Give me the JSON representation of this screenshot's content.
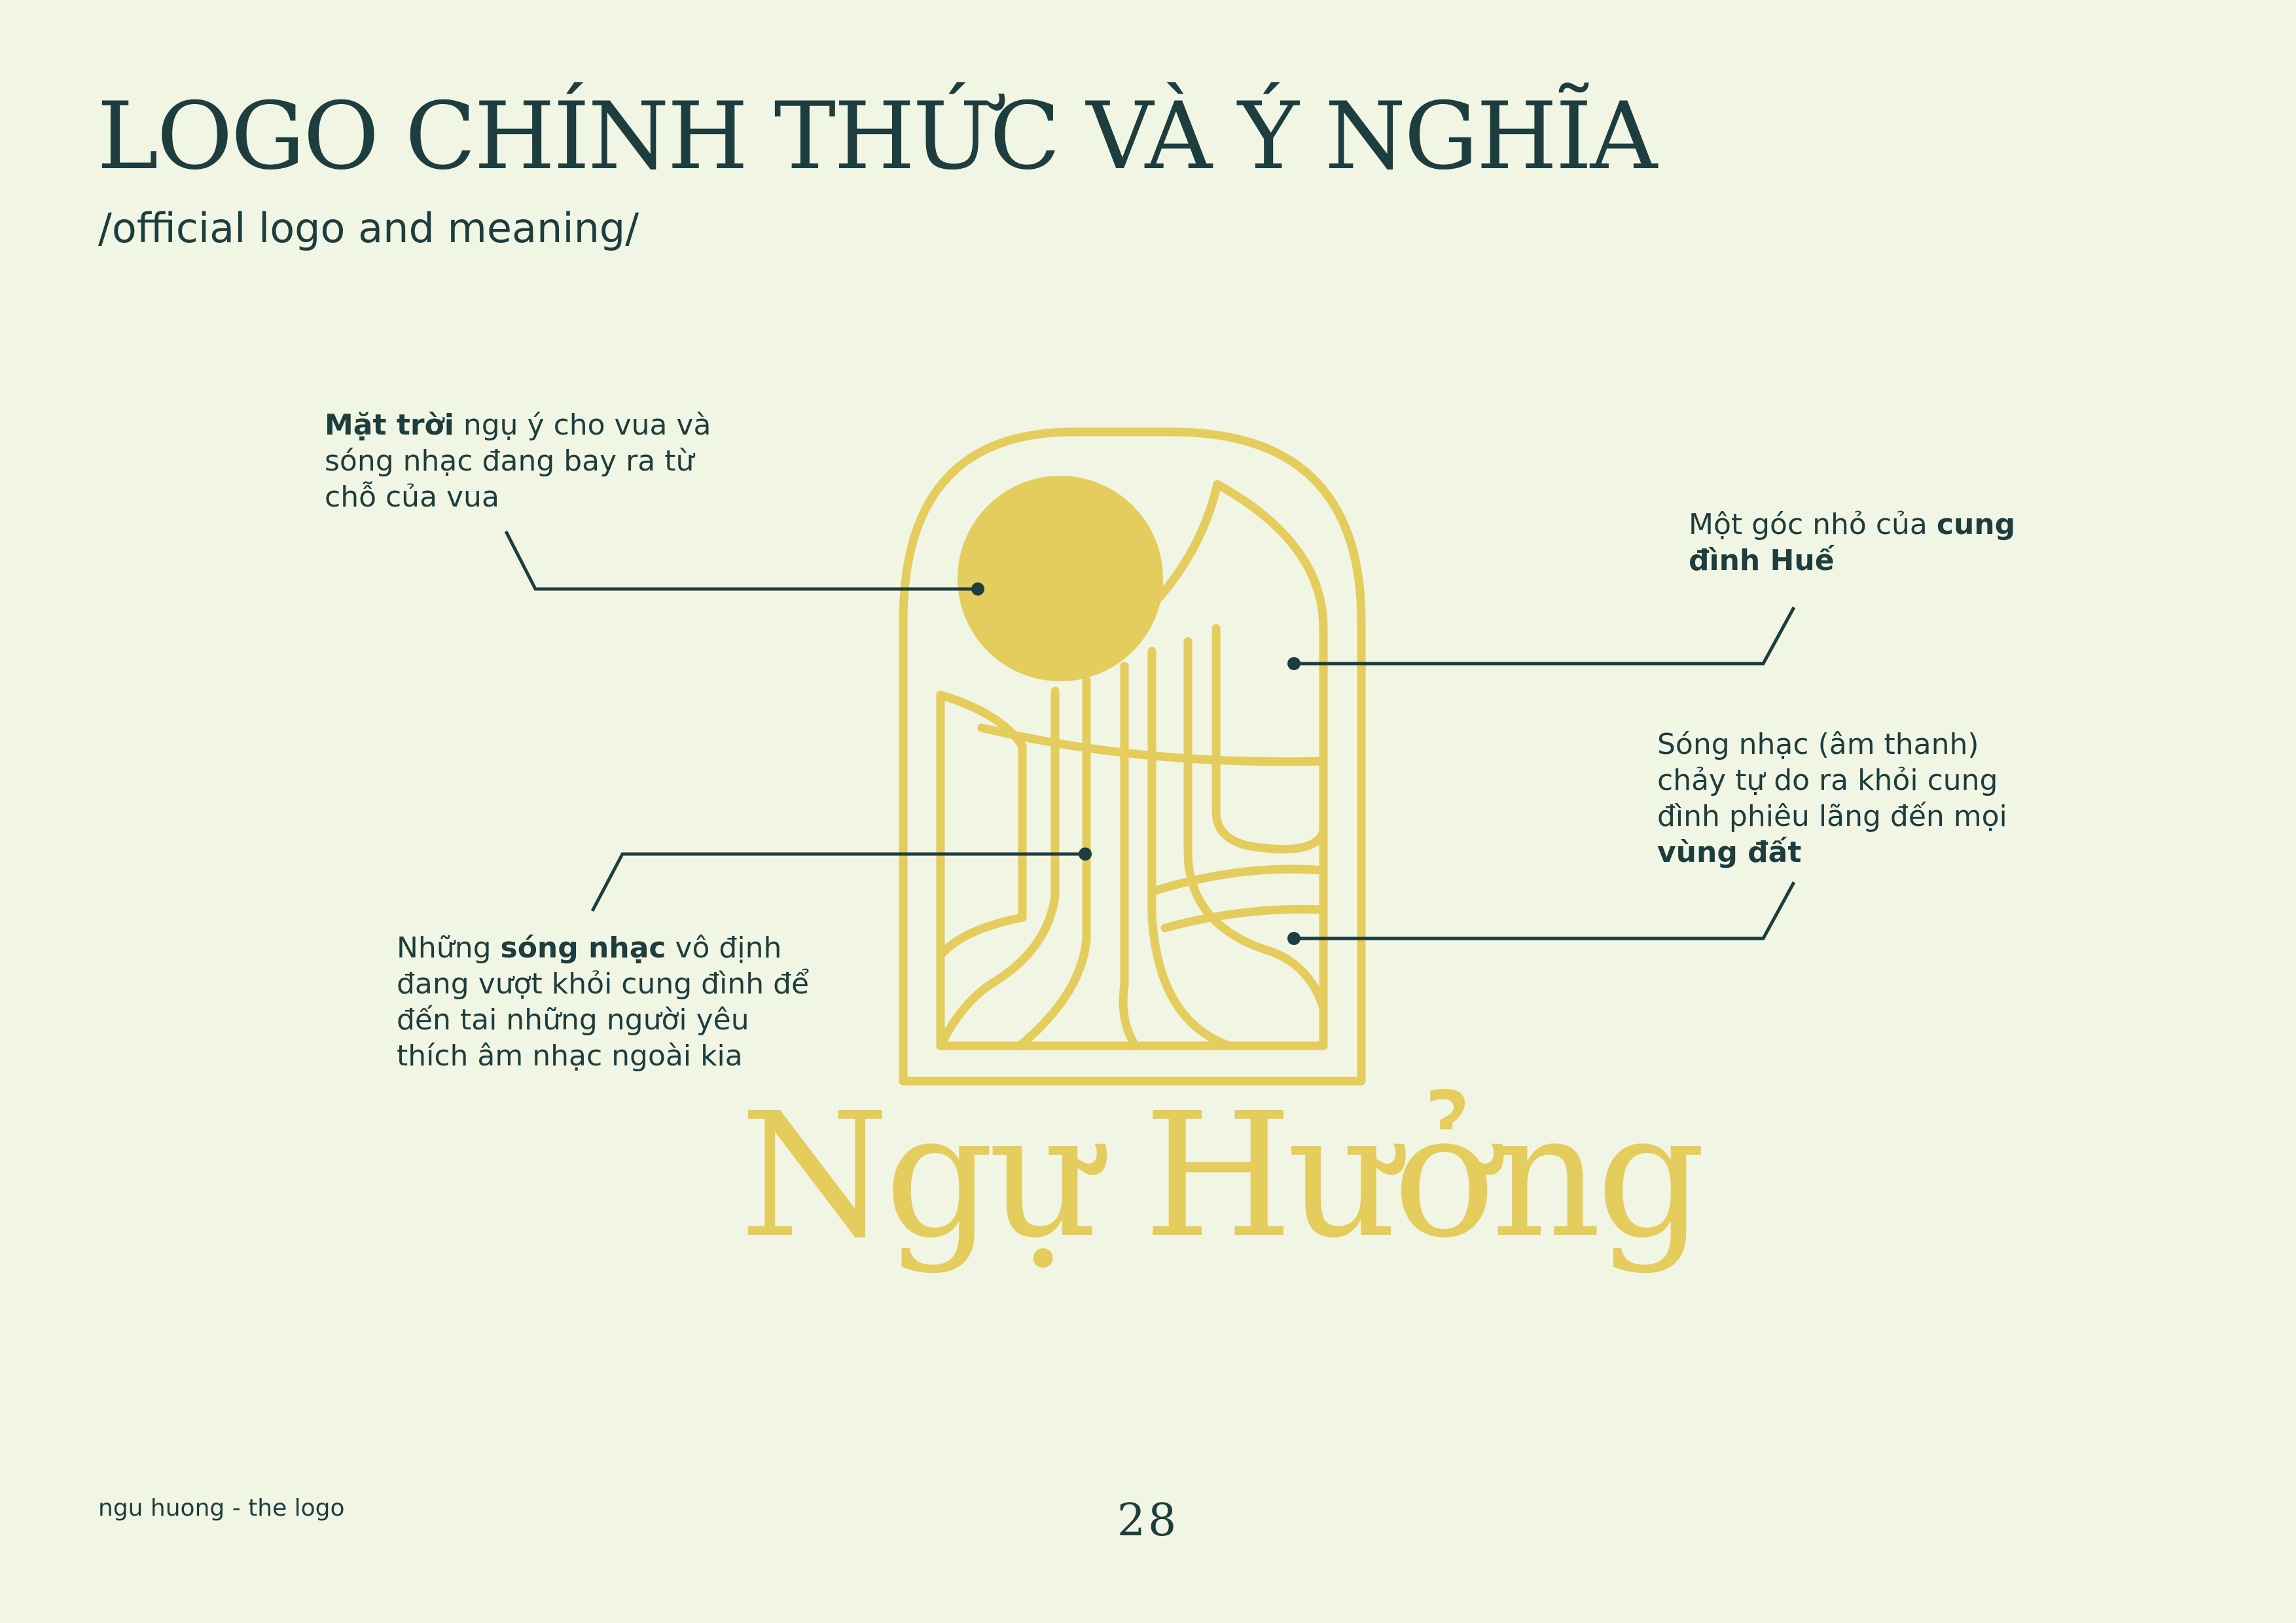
{
  "header": {
    "title": "LOGO CHÍNH THỨC VÀ Ý NGHĨA",
    "subtitle": "/official logo and meaning/"
  },
  "annotations": {
    "sun": {
      "bold": "Mặt trời",
      "text": " ngụ ý cho vua và sóng nhạc đang bay ra từ chỗ của vua"
    },
    "palace": {
      "text": "Một góc nhỏ của ",
      "bold": "cung đình Huế"
    },
    "freely": {
      "text": "Sóng nhạc (âm thanh) chảy tự do ra khỏi cung đình phiêu lãng đến mọi ",
      "bold": "vùng đất"
    },
    "waves": {
      "text_before": "Những ",
      "bold": "sóng nhạc",
      "text_after": " vô định đang vượt khỏi cung đình để đến tai những người yêu thích âm nhạc ngoài kia"
    }
  },
  "logo": {
    "wordmark": "Ngự Hưởng",
    "colors": {
      "gold": "#e4cc5d",
      "ink": "#1d3d3e",
      "background": "#f1f5e4"
    }
  },
  "footer": {
    "label": "ngu huong - the logo",
    "page_number": "28"
  }
}
